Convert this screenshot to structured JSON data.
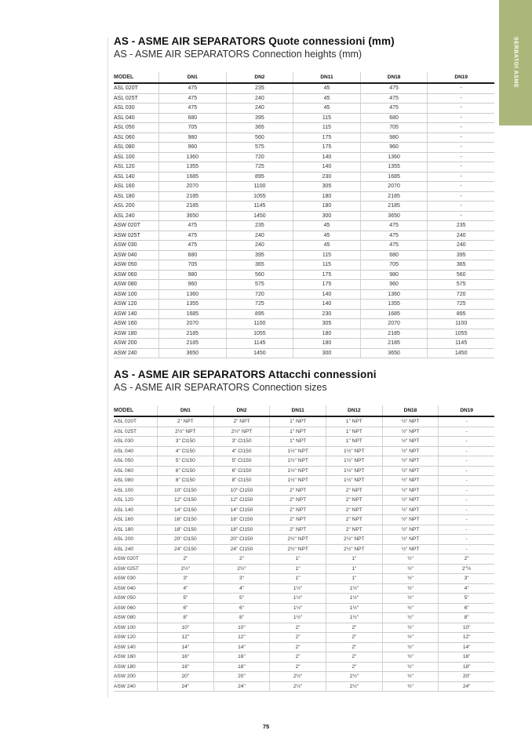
{
  "page": {
    "number": "75"
  },
  "sidebar_tab": {
    "label": "SERBATOI ASME",
    "color": "#a9b87a",
    "text_color": "#ffffff"
  },
  "table1": {
    "title": "AS - ASME AIR SEPARATORS Quote connessioni (mm)",
    "subtitle": "AS - ASME AIR SEPARATORS Connection heights (mm)",
    "headers": [
      "MODEL",
      "DN1",
      "DN2",
      "DN11",
      "DN18",
      "DN19"
    ],
    "rows": [
      [
        "ASL 020T",
        "475",
        "235",
        "45",
        "475",
        "-"
      ],
      [
        "ASL 025T",
        "475",
        "240",
        "45",
        "475",
        "-"
      ],
      [
        "ASL 030",
        "475",
        "240",
        "45",
        "475",
        "-"
      ],
      [
        "ASL 040",
        "680",
        "395",
        "115",
        "680",
        "-"
      ],
      [
        "ASL 050",
        "705",
        "365",
        "115",
        "705",
        "-"
      ],
      [
        "ASL 060",
        "980",
        "560",
        "175",
        "980",
        "-"
      ],
      [
        "ASL 080",
        "960",
        "575",
        "175",
        "960",
        "-"
      ],
      [
        "ASL 100",
        "1360",
        "720",
        "140",
        "1360",
        "-"
      ],
      [
        "ASL 120",
        "1355",
        "725",
        "140",
        "1355",
        "-"
      ],
      [
        "ASL 140",
        "1685",
        "895",
        "230",
        "1685",
        "-"
      ],
      [
        "ASL 160",
        "2070",
        "1100",
        "305",
        "2070",
        "-"
      ],
      [
        "ASL 180",
        "2185",
        "1055",
        "180",
        "2185",
        "-"
      ],
      [
        "ASL 200",
        "2185",
        "1145",
        "180",
        "2185",
        "-"
      ],
      [
        "ASL 240",
        "3650",
        "1450",
        "300",
        "3650",
        "-"
      ],
      [
        "ASW 020T",
        "475",
        "235",
        "45",
        "475",
        "235"
      ],
      [
        "ASW 025T",
        "475",
        "240",
        "45",
        "475",
        "240"
      ],
      [
        "ASW 030",
        "475",
        "240",
        "45",
        "475",
        "240"
      ],
      [
        "ASW 040",
        "680",
        "395",
        "115",
        "680",
        "395"
      ],
      [
        "ASW 050",
        "705",
        "365",
        "115",
        "705",
        "365"
      ],
      [
        "ASW 060",
        "980",
        "560",
        "175",
        "980",
        "560"
      ],
      [
        "ASW 080",
        "960",
        "575",
        "175",
        "960",
        "575"
      ],
      [
        "ASW 100",
        "1360",
        "720",
        "140",
        "1360",
        "720"
      ],
      [
        "ASW 120",
        "1355",
        "725",
        "140",
        "1355",
        "725"
      ],
      [
        "ASW 140",
        "1685",
        "895",
        "230",
        "1685",
        "895"
      ],
      [
        "ASW 160",
        "2070",
        "1100",
        "305",
        "2070",
        "1100"
      ],
      [
        "ASW 180",
        "2185",
        "1055",
        "180",
        "2185",
        "1055"
      ],
      [
        "ASW 200",
        "2185",
        "1145",
        "180",
        "2185",
        "1145"
      ],
      [
        "ASW 240",
        "3650",
        "1450",
        "300",
        "3650",
        "1450"
      ]
    ]
  },
  "table2": {
    "title": "AS - ASME AIR SEPARATORS Attacchi connessioni",
    "subtitle": "AS - ASME AIR SEPARATORS Connection sizes",
    "headers": [
      "MODEL",
      "DN1",
      "DN2",
      "DN11",
      "DN12",
      "DN18",
      "DN19"
    ],
    "rows": [
      [
        "ASL 020T",
        "2\" NPT",
        "2\" NPT",
        "1\" NPT",
        "1\" NPT",
        "½\" NPT",
        "-"
      ],
      [
        "ASL 025T",
        "2½\" NPT",
        "2½\" NPT",
        "1\" NPT",
        "1\" NPT",
        "½\" NPT",
        "-"
      ],
      [
        "ASL 030",
        "3\" Cl150",
        "3\" Cl150",
        "1\" NPT",
        "1\" NPT",
        "½\" NPT",
        "-"
      ],
      [
        "ASL 040",
        "4\" Cl150",
        "4\" Cl150",
        "1½\" NPT",
        "1½\" NPT",
        "½\" NPT",
        "-"
      ],
      [
        "ASL 050",
        "5\" Cl150",
        "5\" Cl150",
        "1½\" NPT",
        "1½\" NPT",
        "½\" NPT",
        "-"
      ],
      [
        "ASL 060",
        "6\" Cl150",
        "6\" Cl150",
        "1½\" NPT",
        "1½\" NPT",
        "½\" NPT",
        "-"
      ],
      [
        "ASL 080",
        "8\" Cl150",
        "8\" Cl150",
        "1½\" NPT",
        "1½\" NPT",
        "½\" NPT",
        "-"
      ],
      [
        "ASL 100",
        "10\" Cl150",
        "10\" Cl150",
        "2\" NPT",
        "2\" NPT",
        "½\" NPT",
        "-"
      ],
      [
        "ASL 120",
        "12\" Cl150",
        "12\" Cl150",
        "2\" NPT",
        "2\" NPT",
        "½\" NPT",
        "-"
      ],
      [
        "ASL 140",
        "14\" Cl150",
        "14\" Cl150",
        "2\" NPT",
        "2\" NPT",
        "½\" NPT",
        "-"
      ],
      [
        "ASL 160",
        "16\" Cl150",
        "16\" Cl150",
        "2\" NPT",
        "2\" NPT",
        "½\" NPT",
        "-"
      ],
      [
        "ASL 180",
        "18\" Cl150",
        "18\" Cl150",
        "2\" NPT",
        "2\" NPT",
        "½\" NPT",
        "-"
      ],
      [
        "ASL 200",
        "20\" Cl150",
        "20\" Cl150",
        "2½\" NPT",
        "2½\" NPT",
        "½\" NPT",
        "-"
      ],
      [
        "ASL 240",
        "24\" Cl150",
        "24\" Cl150",
        "2½\" NPT",
        "2½\" NPT",
        "½\" NPT",
        "-"
      ],
      [
        "ASW 020T",
        "2\"",
        "2\"",
        "1\"",
        "1\"",
        "½\"",
        "2\""
      ],
      [
        "ASW 025T",
        "2½\"",
        "2½\"",
        "1\"",
        "1\"",
        "½\"",
        "2\"½"
      ],
      [
        "ASW 030",
        "3\"",
        "3\"",
        "1\"",
        "1\"",
        "½\"",
        "3\""
      ],
      [
        "ASW 040",
        "4\"",
        "4\"",
        "1½\"",
        "1½\"",
        "½\"",
        "4\""
      ],
      [
        "ASW 050",
        "5\"",
        "5\"",
        "1½\"",
        "1½\"",
        "½\"",
        "5\""
      ],
      [
        "ASW 060",
        "6\"",
        "6\"",
        "1½\"",
        "1½\"",
        "½\"",
        "6\""
      ],
      [
        "ASW 080",
        "8\"",
        "8\"",
        "1½\"",
        "1½\"",
        "½\"",
        "8\""
      ],
      [
        "ASW 100",
        "10\"",
        "10\"",
        "2\"",
        "2\"",
        "½\"",
        "10\""
      ],
      [
        "ASW 120",
        "12\"",
        "12\"",
        "2\"",
        "2\"",
        "½\"",
        "12\""
      ],
      [
        "ASW 140",
        "14\"",
        "14\"",
        "2\"",
        "2\"",
        "½\"",
        "14\""
      ],
      [
        "ASW 160",
        "16\"",
        "16\"",
        "2\"",
        "2\"",
        "½\"",
        "16\""
      ],
      [
        "ASW 180",
        "18\"",
        "18\"",
        "2\"",
        "2\"",
        "½\"",
        "18\""
      ],
      [
        "ASW 200",
        "20\"",
        "20\"",
        "2½\"",
        "2½\"",
        "½\"",
        "20\""
      ],
      [
        "ASW 240",
        "24\"",
        "24\"",
        "2½\"",
        "2½\"",
        "½\"",
        "24\""
      ]
    ]
  }
}
